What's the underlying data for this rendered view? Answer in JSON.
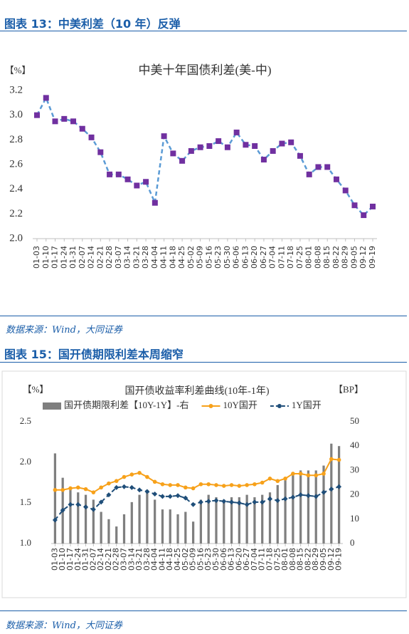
{
  "sections": [
    {
      "header": "图表 13：中美利差（10 年）反弹",
      "source": "数据来源：Wind，大同证券"
    },
    {
      "header": "图表 15：国开债期限利差本周缩窄",
      "source": "数据来源：Wind，大同证券"
    }
  ],
  "chart_data": [
    {
      "type": "line",
      "title": "中美十年国债利差(美-中)",
      "y_label": "【%】",
      "categories": [
        "01-03",
        "01-10",
        "01-17",
        "01-24",
        "01-31",
        "02-07",
        "02-14",
        "02-21",
        "02-28",
        "03-07",
        "03-14",
        "03-21",
        "03-28",
        "04-04",
        "04-11",
        "04-18",
        "04-25",
        "05-02",
        "05-09",
        "05-16",
        "05-23",
        "05-30",
        "06-06",
        "06-13",
        "06-20",
        "06-27",
        "07-04",
        "07-11",
        "07-18",
        "07-25",
        "08-01",
        "08-08",
        "08-15",
        "08-22",
        "08-29",
        "09-05",
        "09-12",
        "09-19"
      ],
      "series": [
        {
          "color": "#5b9bd5",
          "marker_color": "#7030a0",
          "values": [
            3.0,
            3.14,
            2.95,
            2.97,
            2.95,
            2.89,
            2.82,
            2.7,
            2.52,
            2.52,
            2.48,
            2.43,
            2.46,
            2.29,
            2.83,
            2.69,
            2.63,
            2.71,
            2.74,
            2.75,
            2.79,
            2.74,
            2.86,
            2.76,
            2.75,
            2.64,
            2.71,
            2.77,
            2.78,
            2.67,
            2.52,
            2.58,
            2.58,
            2.48,
            2.39,
            2.27,
            2.19,
            2.26
          ]
        }
      ],
      "ylim": [
        2.0,
        3.2
      ],
      "yticks": [
        {
          "value": 2.0,
          "label": "2.0"
        },
        2.2,
        2.4,
        2.6,
        2.8,
        {
          "value": 3.0,
          "label": "3.0"
        },
        3.2
      ],
      "grid": false
    },
    {
      "type": "bar_line",
      "title": "国开债收益率利差曲线(10年-1年)",
      "y_label": "【%】",
      "y2_label": "【BP】",
      "categories": [
        "01-03",
        "01-10",
        "01-17",
        "01-24",
        "01-31",
        "02-07",
        "02-14",
        "02-21",
        "02-28",
        "03-07",
        "03-14",
        "03-21",
        "03-28",
        "04-04",
        "04-11",
        "04-18",
        "04-25",
        "05-02",
        "05-09",
        "05-16",
        "05-23",
        "05-30",
        "06-06",
        "06-13",
        "06-20",
        "06-27",
        "07-04",
        "07-11",
        "07-18",
        "07-25",
        "08-01",
        "08-08",
        "08-15",
        "08-22",
        "08-29",
        "09-05",
        "09-12",
        "09-19"
      ],
      "series": [
        {
          "name": "国开债期限利差【10Y-1Y】-右",
          "type": "bar",
          "axis": "y2",
          "color": "#7f7f7f",
          "values": [
            37,
            27,
            22,
            21,
            20,
            18,
            13,
            10,
            7,
            12,
            17,
            20,
            22,
            18,
            14,
            14,
            12,
            13,
            9,
            18,
            20,
            19,
            18,
            19,
            19,
            20,
            19,
            20,
            21,
            24,
            26,
            28,
            30,
            30,
            30,
            32,
            41,
            40
          ]
        },
        {
          "name": "10Y国开",
          "type": "line",
          "color": "#f7a11a",
          "values": [
            1.66,
            1.66,
            1.68,
            1.69,
            1.67,
            1.63,
            1.69,
            1.74,
            1.77,
            1.82,
            1.85,
            1.87,
            1.82,
            1.76,
            1.73,
            1.72,
            1.72,
            1.69,
            1.68,
            1.73,
            1.73,
            1.72,
            1.71,
            1.72,
            1.71,
            1.72,
            1.73,
            1.75,
            1.8,
            1.77,
            1.8,
            1.86,
            1.86,
            1.84,
            1.84,
            1.86,
            2.04,
            2.03
          ]
        },
        {
          "name": "1Y国开",
          "type": "line",
          "dashed": true,
          "color": "#1f4e79",
          "values": [
            1.29,
            1.41,
            1.48,
            1.48,
            1.45,
            1.42,
            1.51,
            1.6,
            1.69,
            1.7,
            1.69,
            1.66,
            1.64,
            1.61,
            1.58,
            1.58,
            1.59,
            1.56,
            1.48,
            1.51,
            1.52,
            1.53,
            1.52,
            1.51,
            1.5,
            1.48,
            1.51,
            1.51,
            1.55,
            1.53,
            1.55,
            1.57,
            1.6,
            1.59,
            1.58,
            1.63,
            1.67,
            1.7
          ]
        }
      ],
      "ylim": [
        1.0,
        2.5
      ],
      "yticks": [
        {
          "value": 1.0,
          "label": "1.0"
        },
        1.5,
        {
          "value": 2.0,
          "label": "2.0"
        },
        2.5
      ],
      "y2lim": [
        0,
        50
      ],
      "y2ticks": [
        0,
        10,
        20,
        30,
        40,
        50
      ],
      "grid": false
    }
  ]
}
